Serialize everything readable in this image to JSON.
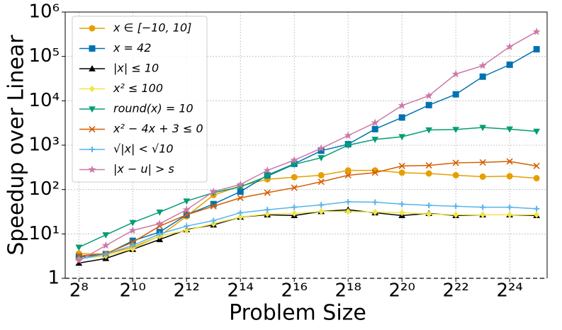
{
  "chart_data": {
    "type": "line",
    "x_label": "Problem Size",
    "y_label": "Speedup over Linear",
    "x": [
      256,
      512,
      1024,
      2048,
      4096,
      8192,
      16384,
      32768,
      65536,
      131072,
      262144,
      524288,
      1048576,
      2097152,
      4194304,
      8388608,
      16777216,
      33554432
    ],
    "xscale": "log2",
    "yscale": "log",
    "grid": true,
    "legend": "upper left",
    "xlim": [
      180,
      44000000
    ],
    "xticks": [
      {
        "value": 256,
        "label": "2⁸"
      },
      {
        "value": 1024,
        "label": "2¹⁰"
      },
      {
        "value": 4096,
        "label": "2¹²"
      },
      {
        "value": 16384,
        "label": "2¹⁴"
      },
      {
        "value": 65536,
        "label": "2¹⁶"
      },
      {
        "value": 262144,
        "label": "2¹⁸"
      },
      {
        "value": 1048576,
        "label": "2²⁰"
      },
      {
        "value": 4194304,
        "label": "2²²"
      },
      {
        "value": 16777216,
        "label": "2²⁴"
      }
    ],
    "ylim": [
      1,
      1000000
    ],
    "yticks": [
      1,
      {
        "value": 10,
        "label": "10¹"
      },
      {
        "value": 100,
        "label": "10²"
      },
      {
        "value": 1000,
        "label": "10³"
      },
      {
        "value": 10000,
        "label": "10⁴"
      },
      {
        "value": 100000,
        "label": "10⁵"
      },
      {
        "value": 1000000,
        "label": "10⁶"
      }
    ],
    "series": [
      {
        "name": "x ∈ [−10, 10]",
        "color": "#e69f00",
        "marker": "circle",
        "values": [
          3.6,
          3.5,
          5,
          9,
          25,
          75,
          120,
          170,
          190,
          210,
          270,
          270,
          240,
          230,
          210,
          195,
          200,
          180
        ]
      },
      {
        "name": "x = 42",
        "color": "#0072b2",
        "marker": "square",
        "values": [
          3,
          3.5,
          7,
          11,
          27,
          47,
          90,
          210,
          380,
          750,
          1050,
          2300,
          4200,
          8000,
          14000,
          35000,
          65000,
          145000
        ]
      },
      {
        "name": "|x| ≤ 10",
        "color": "#000000",
        "marker": "triangle",
        "values": [
          2.2,
          2.8,
          4.5,
          7.5,
          12.5,
          16,
          24,
          27,
          26,
          32,
          35,
          30,
          26,
          29,
          26,
          27,
          27,
          26
        ]
      },
      {
        "name": "x² ≤ 100",
        "color": "#f0e442",
        "marker": "diamond",
        "values": [
          2.8,
          3.2,
          4.6,
          9,
          12,
          17,
          24,
          28,
          29,
          32,
          32,
          31,
          30,
          28,
          27,
          27,
          27,
          27
        ]
      },
      {
        "name": "round(x) = 10",
        "color": "#009e73",
        "marker": "triangle-down",
        "values": [
          5,
          9.5,
          18,
          31,
          55,
          85,
          115,
          200,
          370,
          520,
          1000,
          1350,
          1550,
          2200,
          2250,
          2500,
          2300,
          2050
        ]
      },
      {
        "name": "x² − 4x + 3 ≤ 0",
        "color": "#d55e00",
        "marker": "x",
        "values": [
          3.2,
          3.6,
          6.5,
          15,
          27,
          42,
          65,
          85,
          110,
          150,
          210,
          240,
          340,
          350,
          400,
          410,
          430,
          340
        ]
      },
      {
        "name": "√|x| < √10",
        "color": "#56b4e9",
        "marker": "plus",
        "values": [
          2.7,
          3.5,
          5.5,
          10,
          15,
          20,
          30,
          35,
          40,
          45,
          53,
          52,
          47,
          44,
          42,
          40,
          40,
          37
        ]
      },
      {
        "name": "|x − u| > s",
        "color": "#cc79a7",
        "marker": "star",
        "values": [
          2.5,
          5.5,
          12,
          17,
          35,
          90,
          130,
          270,
          460,
          850,
          1650,
          3200,
          7800,
          13000,
          40000,
          62000,
          165000,
          360000
        ]
      }
    ]
  }
}
